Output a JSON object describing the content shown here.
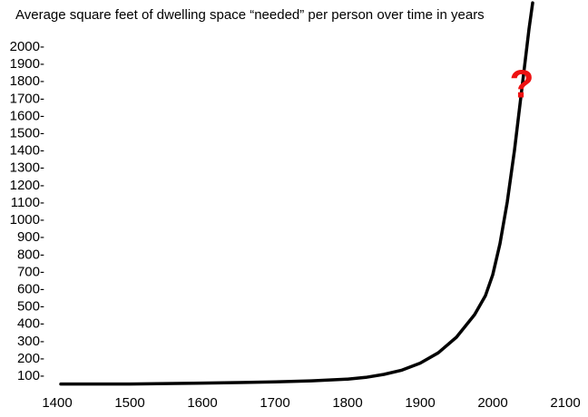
{
  "chart_data": {
    "type": "line",
    "title": "Average square feet of dwelling space “needed”  per person over time in years",
    "xlabel": "",
    "ylabel": "",
    "xlim": [
      1400,
      2100
    ],
    "ylim": [
      50,
      2100
    ],
    "x_ticks": [
      1400,
      1500,
      1600,
      1700,
      1800,
      1900,
      2000,
      2100
    ],
    "x_tick_labels": [
      "1400",
      "1500",
      "1600",
      "1700",
      "1800",
      "1900",
      "2000",
      "2100"
    ],
    "y_ticks": [
      100,
      200,
      300,
      400,
      500,
      600,
      700,
      800,
      900,
      1000,
      1100,
      1200,
      1300,
      1400,
      1500,
      1600,
      1700,
      1800,
      1900,
      2000
    ],
    "y_tick_labels": [
      "100-",
      "200-",
      "300-",
      "400-",
      "500-",
      "600-",
      "700-",
      "800-",
      "900-",
      "1000-",
      "1100-",
      "1200-",
      "1300-",
      "1400-",
      "1500-",
      "1600-",
      "1700-",
      "1800-",
      "1900-",
      "2000-"
    ],
    "grid": false,
    "series": [
      {
        "color": "#000000",
        "x": [
          1405,
          1500,
          1600,
          1650,
          1700,
          1750,
          1800,
          1825,
          1850,
          1875,
          1900,
          1925,
          1950,
          1975,
          1990,
          2000,
          2010,
          2020,
          2030,
          2040,
          2050,
          2055
        ],
        "y": [
          50,
          50,
          55,
          58,
          62,
          68,
          78,
          88,
          105,
          130,
          170,
          230,
          320,
          450,
          560,
          680,
          860,
          1100,
          1400,
          1750,
          2100,
          2250
        ]
      }
    ],
    "annotations": [
      {
        "text": "?",
        "x": 2040,
        "y": 1850,
        "color": "#ee1111"
      }
    ]
  }
}
